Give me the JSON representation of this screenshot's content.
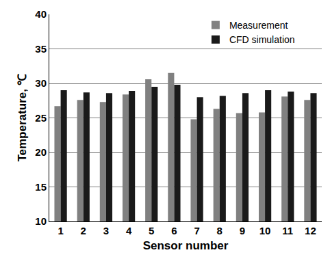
{
  "chart_data": {
    "type": "bar",
    "x_label": "Sensor number",
    "y_label": "Temperature, ℃",
    "categories": [
      "1",
      "2",
      "3",
      "4",
      "5",
      "6",
      "7",
      "8",
      "9",
      "10",
      "11",
      "12"
    ],
    "series": [
      {
        "name": "Measurement",
        "color": "#808080",
        "values": [
          26.7,
          27.6,
          27.3,
          28.4,
          30.6,
          31.5,
          24.8,
          26.3,
          25.7,
          25.8,
          28.1,
          27.6
        ]
      },
      {
        "name": "CFD simulation",
        "color": "#1a1a1a",
        "values": [
          29.0,
          28.7,
          28.6,
          28.9,
          29.5,
          29.8,
          28.0,
          28.2,
          28.6,
          29.0,
          28.8,
          28.6
        ]
      }
    ],
    "ylim": [
      10,
      40
    ],
    "yticks": [
      10,
      15,
      20,
      25,
      30,
      35,
      40
    ],
    "grid": true,
    "legend": "upper right"
  }
}
